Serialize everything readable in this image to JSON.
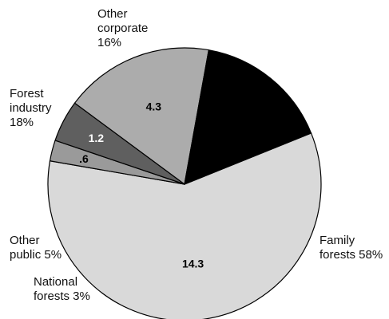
{
  "chart_data": {
    "type": "pie",
    "title": "",
    "slices": [
      {
        "name": "Family forests",
        "percent": "58%",
        "value": 14.3,
        "value_label": "14.3",
        "color": "#d9d9d9",
        "value_color": "#000000",
        "label_lines": [
          "Family",
          "forests 58%"
        ]
      },
      {
        "name": "National forests",
        "percent": "3%",
        "value": 0.6,
        "value_label": ".6",
        "color": "#9a9a9a",
        "value_color": "#000000",
        "label_lines": [
          "National",
          "forests 3%"
        ]
      },
      {
        "name": "Other public",
        "percent": "5%",
        "value": 1.2,
        "value_label": "1.2",
        "color": "#5f5f5f",
        "value_color": "#ffffff",
        "label_lines": [
          "Other",
          "public 5%"
        ]
      },
      {
        "name": "Forest industry",
        "percent": "18%",
        "value": 4.3,
        "value_label": "4.3",
        "color": "#acacac",
        "value_color": "#000000",
        "label_lines": [
          "Forest",
          "industry",
          "18%"
        ]
      },
      {
        "name": "Other corporate",
        "percent": "16%",
        "value": 3.9,
        "value_label": "",
        "color": "#000000",
        "value_color": "#ffffff",
        "label_lines": [
          "Other",
          "corporate",
          "16%"
        ]
      }
    ]
  }
}
